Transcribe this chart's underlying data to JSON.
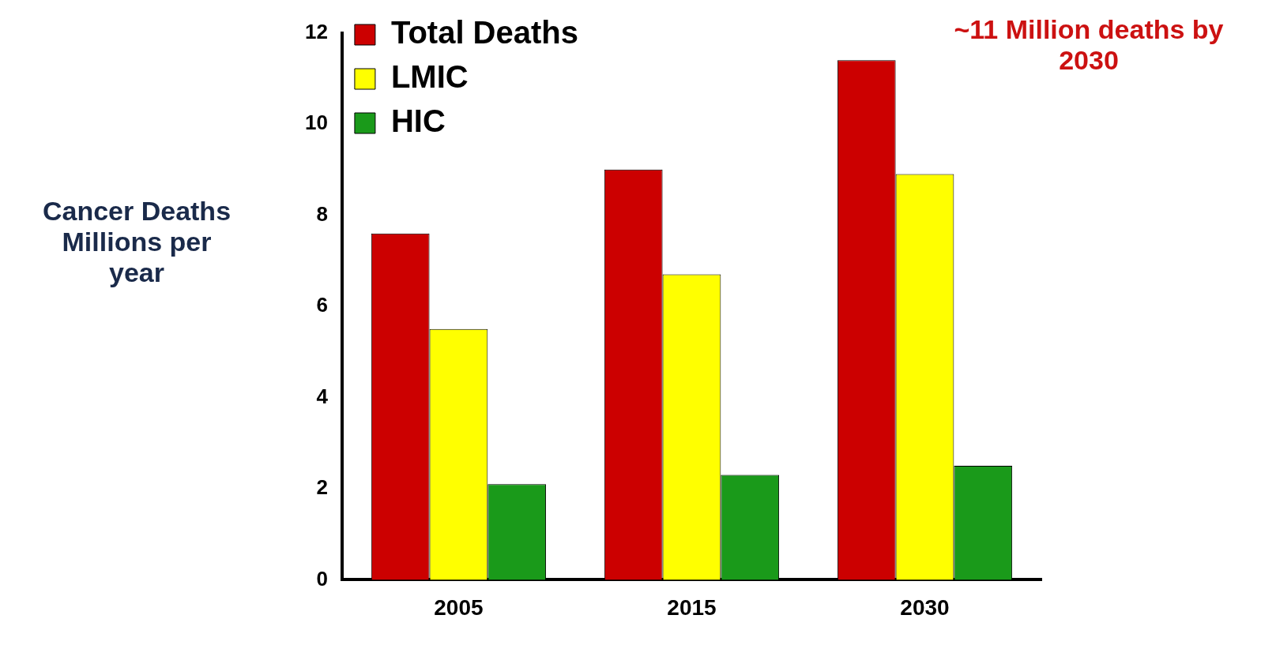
{
  "chart_data": {
    "type": "bar",
    "ylabel": "Cancer Deaths Millions per year",
    "categories": [
      "2005",
      "2015",
      "2030"
    ],
    "series": [
      {
        "name": "Total Deaths",
        "color": "#cc0000",
        "values": [
          7.6,
          9.0,
          11.4
        ]
      },
      {
        "name": "LMIC",
        "color": "#ffff00",
        "values": [
          5.5,
          6.7,
          8.9
        ]
      },
      {
        "name": "HIC",
        "color": "#1a9a1a",
        "values": [
          2.1,
          2.3,
          2.5
        ]
      }
    ],
    "ylim": [
      0,
      12
    ],
    "yticks": [
      0,
      2,
      4,
      6,
      8,
      10,
      12
    ],
    "grid": false,
    "legend": "top left",
    "annotations": [
      "~11 Million deaths by 2030"
    ]
  }
}
